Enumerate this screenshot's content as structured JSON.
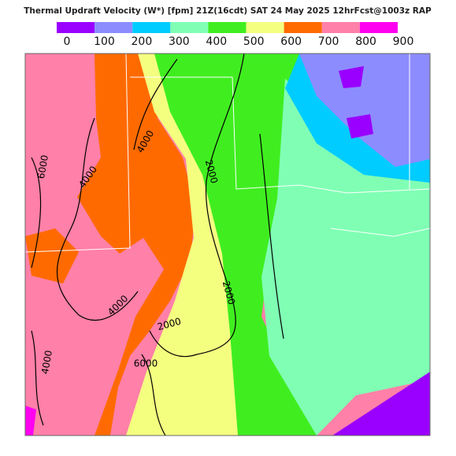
{
  "title": "Thermal Updraft Velocity (W*) [fpm] 21Z(16cdt) SAT 24 May 2025 12hrFcst@1003z RAP",
  "legend": {
    "ticks": [
      0,
      100,
      200,
      300,
      400,
      500,
      600,
      700,
      800,
      900
    ],
    "colors": [
      "#9a00ff",
      "#8c8cff",
      "#00ccff",
      "#80ffb4",
      "#40ee20",
      "#f4ff80",
      "#ff6a00",
      "#ff80a8",
      "#ff00f0"
    ]
  },
  "contour_labels": [
    6000,
    4000,
    4000,
    4000,
    2000,
    2000,
    2000,
    4000,
    6000
  ]
}
